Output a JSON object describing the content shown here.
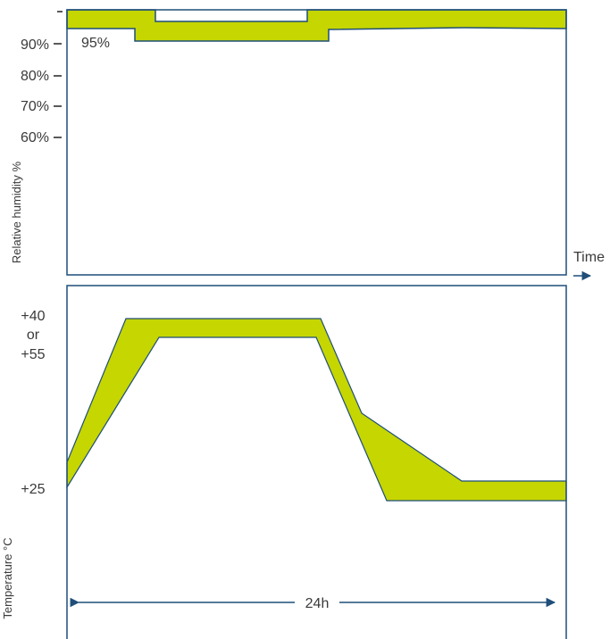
{
  "humidity_panel": {
    "ylabel": "Relative humidity %",
    "ticks": [
      "90%",
      "80%",
      "70%",
      "60%"
    ],
    "band_label": "95%",
    "time_label": "Time"
  },
  "temperature_panel": {
    "ylabel": "Temperature °C",
    "upper_label_line1": "+40",
    "upper_label_line2": "or",
    "upper_label_line3": "+55",
    "lower_label": "+25",
    "duration_label": "24h"
  },
  "colors": {
    "band_fill": "#c5d600",
    "frame": "#1f4e79",
    "text": "#3a3a3a"
  }
}
